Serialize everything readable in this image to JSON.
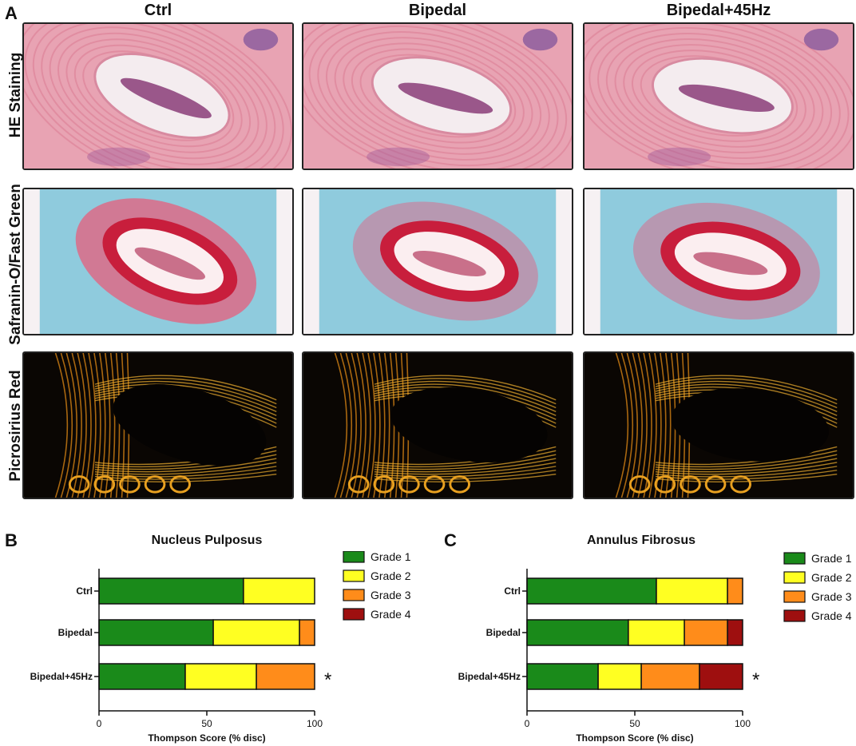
{
  "figure": {
    "panel_labels": {
      "a": "A",
      "b": "B",
      "c": "C"
    },
    "columns": [
      "Ctrl",
      "Bipedal",
      "Bipedal+45Hz"
    ],
    "rows": [
      "HE Staining",
      "Safranin-O/Fast Green",
      "Picrosirius Red"
    ]
  },
  "colors": {
    "grade1": "#1a8a1a",
    "grade2": "#ffff22",
    "grade3": "#ff8c1a",
    "grade4": "#9e0f0f",
    "he_bg": "#e8a3b3",
    "he_np": "#f4ecef",
    "saf_bg": "#7cc4d8",
    "saf_ring": "#c81e3c",
    "pic_bg": "#0a0603",
    "pic_fiber": "#e08a16"
  },
  "chart_data": [
    {
      "type": "bar",
      "stacked": true,
      "orientation": "horizontal",
      "title": "Nucleus Pulposus",
      "categories": [
        "Ctrl",
        "Bipedal",
        "Bipedal+45Hz"
      ],
      "series": [
        {
          "name": "Grade 1",
          "values": [
            67,
            53,
            40
          ]
        },
        {
          "name": "Grade 2",
          "values": [
            33,
            40,
            33
          ]
        },
        {
          "name": "Grade 3",
          "values": [
            0,
            7,
            27
          ]
        },
        {
          "name": "Grade 4",
          "values": [
            0,
            0,
            0
          ]
        }
      ],
      "xlabel": "Thompson Score (% disc)",
      "ylabel": "",
      "xlim": [
        0,
        100
      ],
      "xticks": [
        "0",
        "50",
        "100"
      ],
      "annotations": [
        {
          "category": "Bipedal+45Hz",
          "text": "*"
        }
      ],
      "legend": "right"
    },
    {
      "type": "bar",
      "stacked": true,
      "orientation": "horizontal",
      "title": "Annulus Fibrosus",
      "categories": [
        "Ctrl",
        "Bipedal",
        "Bipedal+45Hz"
      ],
      "series": [
        {
          "name": "Grade 1",
          "values": [
            60,
            47,
            33
          ]
        },
        {
          "name": "Grade 2",
          "values": [
            33,
            26,
            20
          ]
        },
        {
          "name": "Grade 3",
          "values": [
            7,
            20,
            27
          ]
        },
        {
          "name": "Grade 4",
          "values": [
            0,
            7,
            20
          ]
        }
      ],
      "xlabel": "Thompson Score (% disc)",
      "ylabel": "",
      "xlim": [
        0,
        100
      ],
      "xticks": [
        "0",
        "50",
        "100"
      ],
      "annotations": [
        {
          "category": "Bipedal+45Hz",
          "text": "*"
        }
      ],
      "legend": "right"
    }
  ]
}
